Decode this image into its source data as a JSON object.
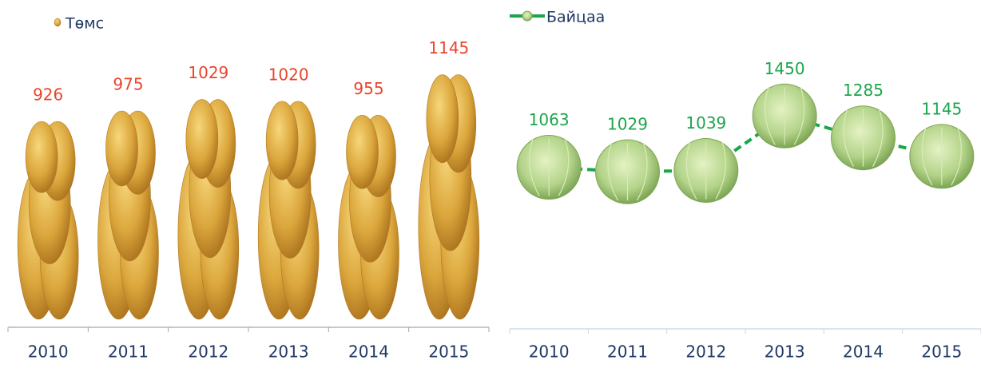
{
  "chart_data": [
    {
      "type": "bar",
      "categories": [
        "2010",
        "2011",
        "2012",
        "2013",
        "2014",
        "2015"
      ],
      "series": [
        {
          "name": "Төмс",
          "color": "#d9a23a",
          "label_color": "#e8452c",
          "values": [
            926,
            975,
            1029,
            1020,
            955,
            1145
          ]
        }
      ],
      "ylim": [
        0,
        1300
      ],
      "category_color": "#1f3864",
      "axis_color": "#a6a6a6"
    },
    {
      "type": "line",
      "categories": [
        "2010",
        "2011",
        "2012",
        "2013",
        "2014",
        "2015"
      ],
      "series": [
        {
          "name": "Байцаа",
          "color": "#1aa64a",
          "label_color": "#1aa64a",
          "values": [
            1063,
            1029,
            1039,
            1450,
            1285,
            1145
          ]
        }
      ],
      "ylim": [
        0,
        2000
      ],
      "category_color": "#1f3864",
      "axis_color": "#c5d5ea"
    }
  ]
}
